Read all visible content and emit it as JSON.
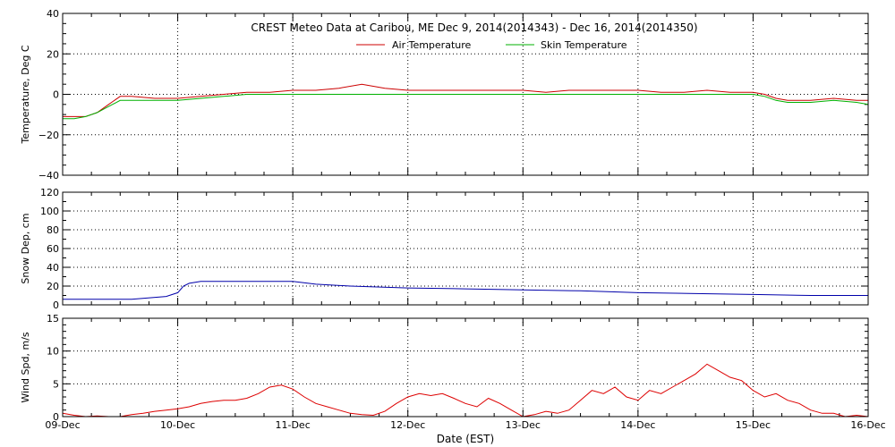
{
  "colors": {
    "air": "#cc0000",
    "skin": "#00b000",
    "snow": "#0000aa",
    "wind": "#dd0000",
    "axes": "#000000"
  },
  "chart_data": {
    "type": "line",
    "title": "CREST Meteo Data at Caribou, ME   Dec  9, 2014(2014343) - Dec 16, 2014(2014350)",
    "xlabel": "Date (EST)",
    "x_ticks": [
      "09-Dec",
      "10-Dec",
      "11-Dec",
      "12-Dec",
      "13-Dec",
      "14-Dec",
      "15-Dec",
      "16-Dec"
    ],
    "x_unit": "days since 09-Dec 00:00",
    "xlim": [
      0,
      7
    ],
    "grid": true,
    "legend": "top-center",
    "panels": [
      {
        "name": "temperature",
        "ylabel": "Temperature, Deg C",
        "ylim": [
          -40,
          40
        ],
        "y_ticks": [
          "40",
          "20",
          "0",
          "−20",
          "−40"
        ],
        "series": [
          {
            "name": "Air Temperature",
            "color": "#cc0000",
            "x": [
              0,
              0.1,
              0.2,
              0.3,
              0.4,
              0.5,
              0.6,
              0.8,
              1.0,
              1.2,
              1.4,
              1.6,
              1.8,
              2.0,
              2.2,
              2.4,
              2.6,
              2.8,
              3.0,
              3.2,
              3.4,
              3.6,
              3.8,
              4.0,
              4.2,
              4.4,
              4.6,
              4.8,
              5.0,
              5.2,
              5.4,
              5.6,
              5.8,
              6.0,
              6.1,
              6.2,
              6.3,
              6.5,
              6.7,
              6.9,
              7.0
            ],
            "y": [
              -11,
              -11,
              -11,
              -9,
              -5,
              -1,
              -1,
              -2,
              -2,
              -1,
              0,
              1,
              1,
              2,
              2,
              3,
              5,
              3,
              2,
              2,
              2,
              2,
              2,
              2,
              1,
              2,
              2,
              2,
              2,
              1,
              1,
              2,
              1,
              1,
              0,
              -2,
              -3,
              -3,
              -2,
              -3,
              -3
            ]
          },
          {
            "name": "Skin Temperature",
            "color": "#00b000",
            "x": [
              0,
              0.1,
              0.2,
              0.3,
              0.4,
              0.5,
              0.6,
              0.8,
              1.0,
              1.2,
              1.4,
              1.6,
              1.8,
              2.0,
              2.2,
              2.4,
              2.6,
              2.8,
              3.0,
              3.2,
              3.4,
              3.6,
              3.8,
              4.0,
              4.2,
              4.4,
              4.6,
              4.8,
              5.0,
              5.2,
              5.4,
              5.6,
              5.8,
              6.0,
              6.1,
              6.2,
              6.3,
              6.5,
              6.7,
              6.9,
              7.0
            ],
            "y": [
              -12,
              -12,
              -11,
              -9,
              -6,
              -3,
              -3,
              -3,
              -3,
              -2,
              -1,
              0,
              0,
              0,
              0,
              0,
              0,
              0,
              0,
              0,
              0,
              0,
              0,
              0,
              0,
              0,
              0,
              0,
              0,
              0,
              0,
              0,
              0,
              0,
              -1,
              -3,
              -4,
              -4,
              -3,
              -4,
              -5
            ]
          }
        ]
      },
      {
        "name": "snow",
        "ylabel": "Snow Dep, cm",
        "ylim": [
          0,
          120
        ],
        "y_ticks": [
          "120",
          "100",
          "80",
          "60",
          "40",
          "20",
          "0"
        ],
        "series": [
          {
            "name": "",
            "color": "#0000aa",
            "x": [
              0,
              0.3,
              0.6,
              0.9,
              1.0,
              1.05,
              1.1,
              1.2,
              1.5,
              1.8,
              2.0,
              2.2,
              2.5,
              3.0,
              3.5,
              4.0,
              4.5,
              5.0,
              5.5,
              6.0,
              6.5,
              7.0
            ],
            "y": [
              6,
              6,
              6,
              9,
              13,
              20,
              23,
              25,
              25,
              25,
              25,
              22,
              20,
              18,
              17,
              16,
              15,
              13,
              12,
              11,
              10,
              10
            ]
          }
        ]
      },
      {
        "name": "wind",
        "ylabel": "Wind Spd, m/s",
        "ylim": [
          0,
          15
        ],
        "y_ticks": [
          "15",
          "10",
          "5",
          "0"
        ],
        "series": [
          {
            "name": "",
            "color": "#dd0000",
            "x": [
              0,
              0.1,
              0.2,
              0.3,
              0.4,
              0.5,
              0.6,
              0.7,
              0.8,
              0.9,
              1.0,
              1.1,
              1.2,
              1.3,
              1.4,
              1.5,
              1.6,
              1.7,
              1.8,
              1.9,
              2.0,
              2.1,
              2.2,
              2.3,
              2.4,
              2.5,
              2.6,
              2.7,
              2.8,
              2.9,
              3.0,
              3.1,
              3.2,
              3.3,
              3.4,
              3.5,
              3.6,
              3.7,
              3.8,
              3.9,
              4.0,
              4.1,
              4.2,
              4.3,
              4.4,
              4.5,
              4.6,
              4.7,
              4.8,
              4.9,
              5.0,
              5.1,
              5.2,
              5.3,
              5.4,
              5.5,
              5.6,
              5.7,
              5.8,
              5.9,
              6.0,
              6.1,
              6.2,
              6.3,
              6.4,
              6.5,
              6.6,
              6.7,
              6.8,
              6.9,
              7.0
            ],
            "y": [
              0.5,
              0.2,
              0,
              0.1,
              0,
              0,
              0.3,
              0.5,
              0.8,
              1,
              1.2,
              1.5,
              2,
              2.3,
              2.5,
              2.5,
              2.8,
              3.5,
              4.5,
              4.8,
              4.2,
              3,
              2,
              1.5,
              1,
              0.5,
              0.3,
              0.2,
              0.8,
              2,
              3,
              3.5,
              3.2,
              3.5,
              2.8,
              2,
              1.5,
              2.8,
              2,
              1,
              0,
              0.3,
              0.8,
              0.5,
              1,
              2.5,
              4,
              3.5,
              4.5,
              3,
              2.5,
              4,
              3.5,
              4.5,
              5.5,
              6.5,
              8,
              7,
              6,
              5.5,
              4,
              3,
              3.5,
              2.5,
              2,
              1,
              0.5,
              0.5,
              0,
              0.2,
              0
            ]
          }
        ]
      }
    ]
  }
}
